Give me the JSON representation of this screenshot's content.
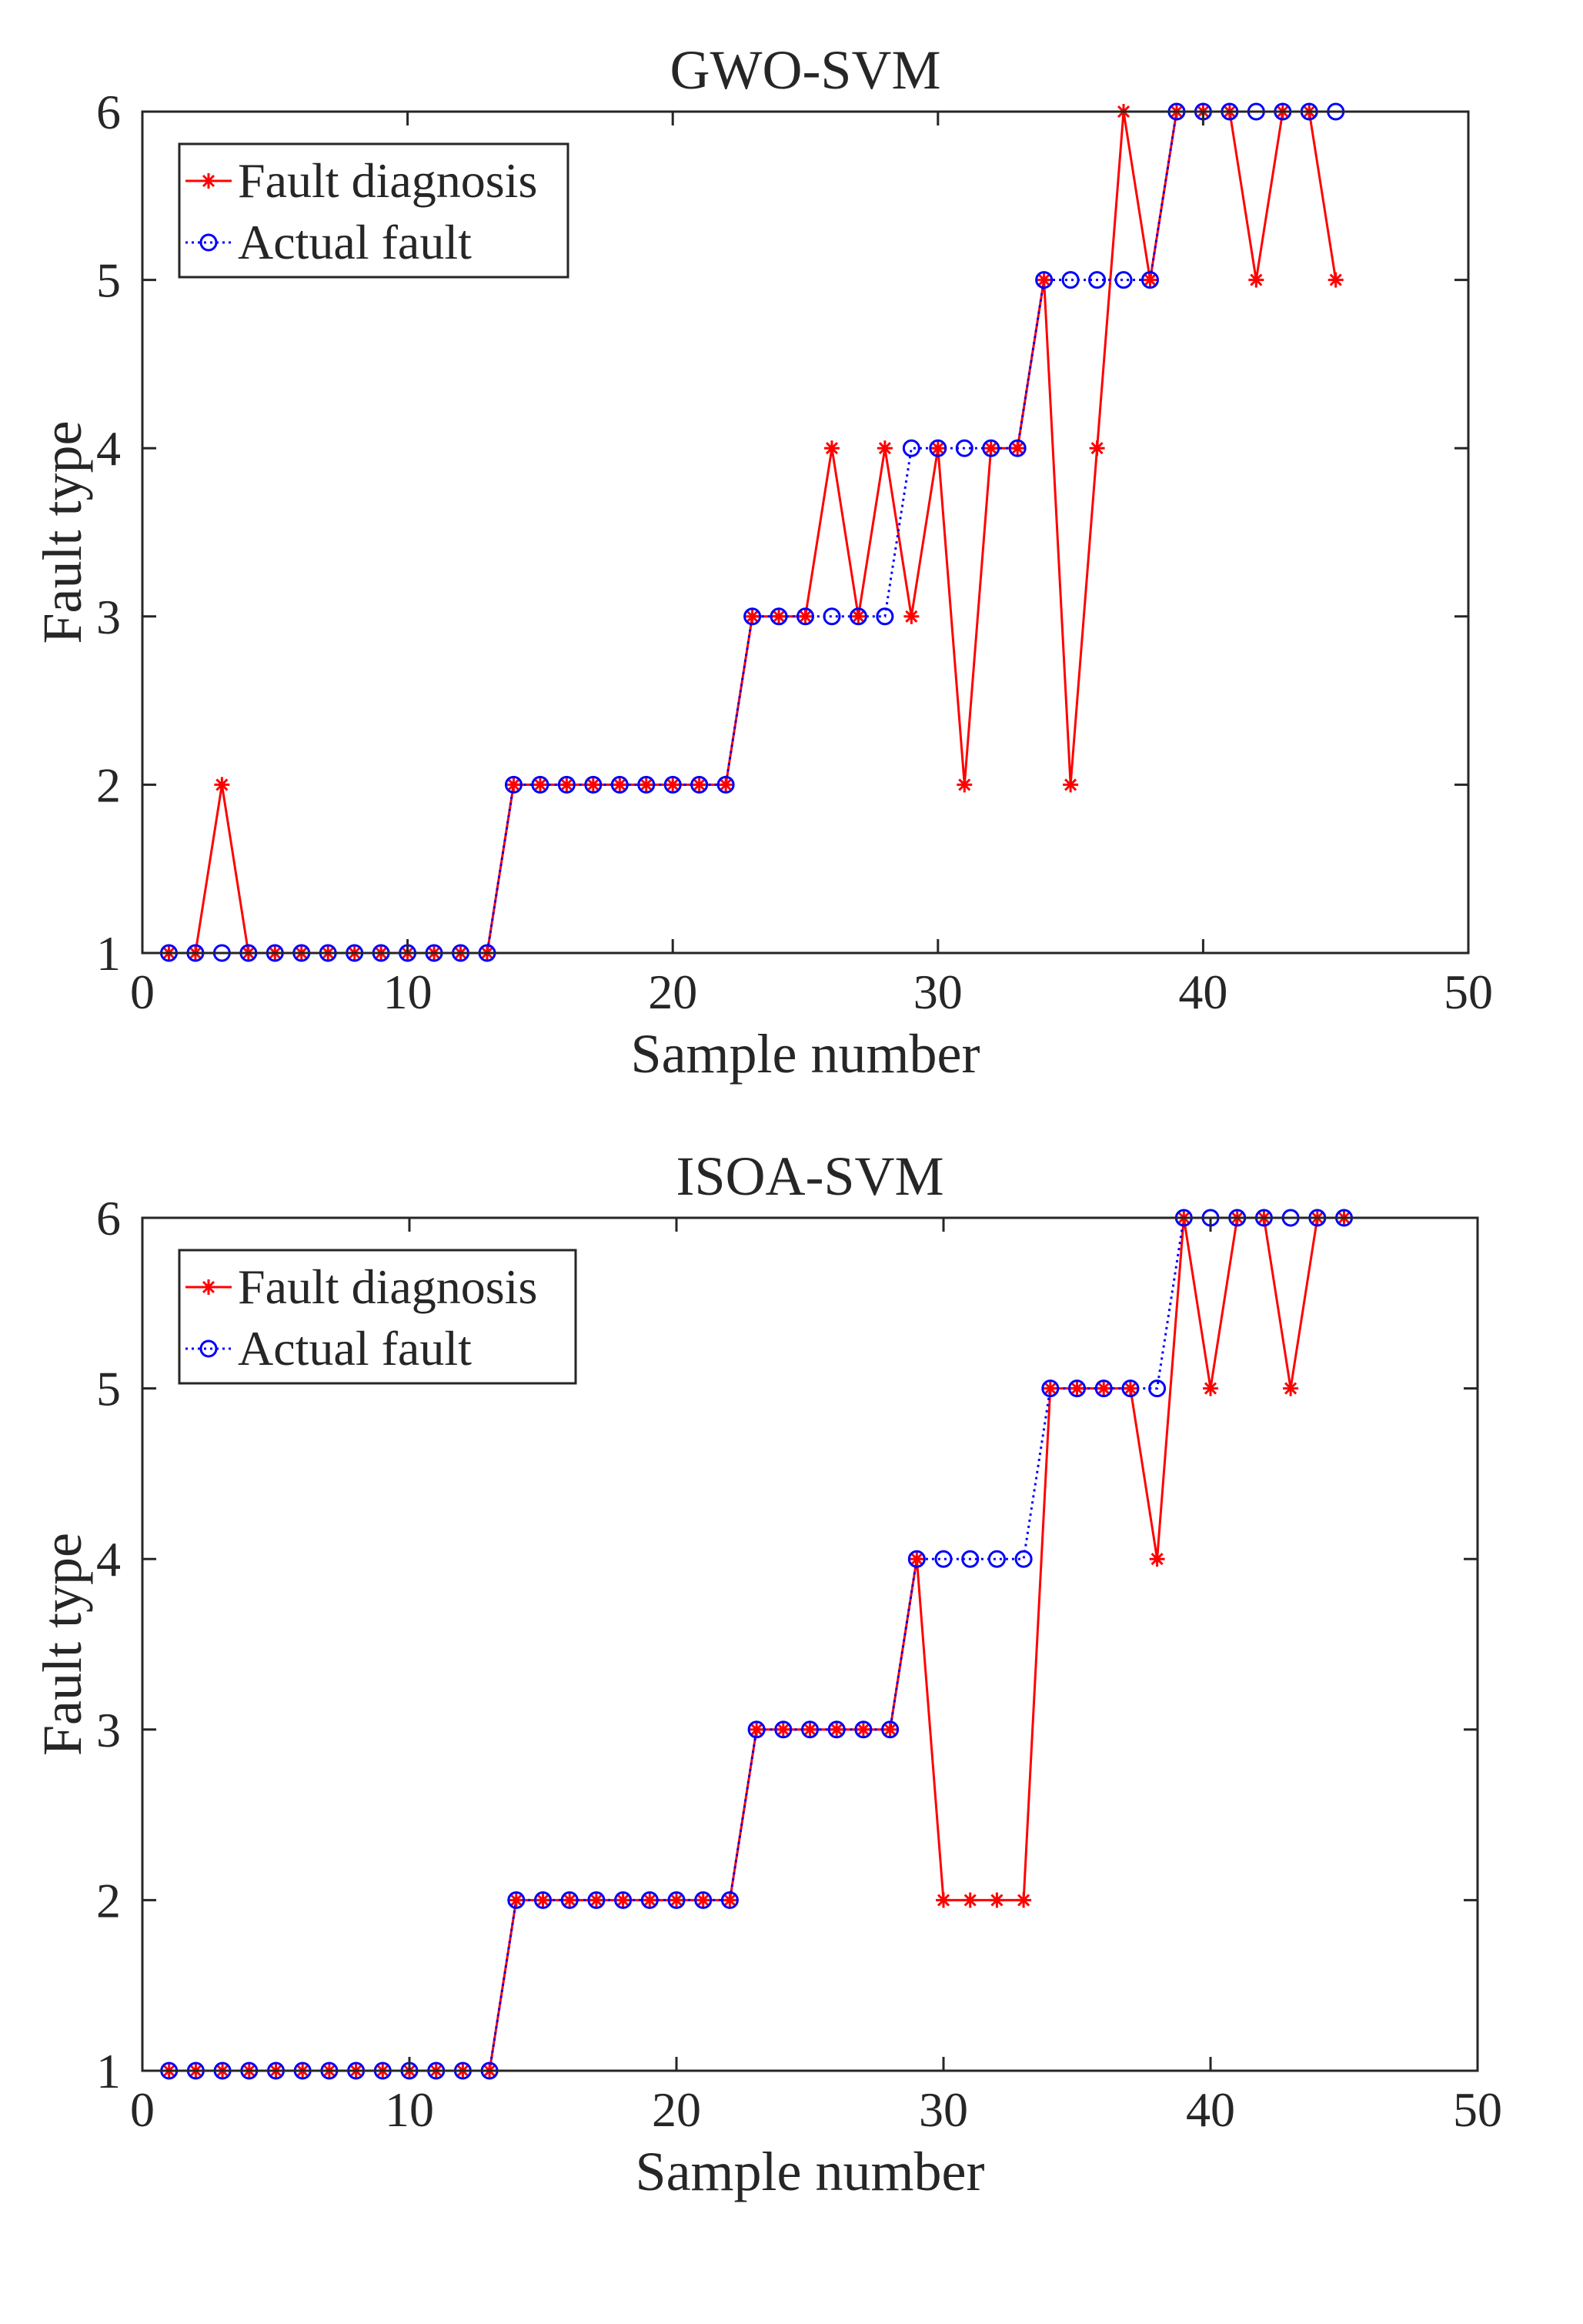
{
  "chart_data": [
    {
      "type": "line",
      "title": "GWO-SVM",
      "xlabel": "Sample number",
      "ylabel": "Fault type",
      "xlim": [
        0,
        50
      ],
      "ylim": [
        1,
        6
      ],
      "xticks": [
        0,
        10,
        20,
        30,
        40,
        50
      ],
      "yticks": [
        1,
        2,
        3,
        4,
        5,
        6
      ],
      "grid": false,
      "legend_position": "top-left",
      "x": [
        1,
        2,
        3,
        4,
        5,
        6,
        7,
        8,
        9,
        10,
        11,
        12,
        13,
        14,
        15,
        16,
        17,
        18,
        19,
        20,
        21,
        22,
        23,
        24,
        25,
        26,
        27,
        28,
        29,
        30,
        31,
        32,
        33,
        34,
        35,
        36,
        37,
        38,
        39,
        40,
        41,
        42,
        43,
        44,
        45
      ],
      "series": [
        {
          "name": "Fault diagnosis",
          "color": "#ff0000",
          "line": "solid",
          "marker": "asterisk",
          "values": [
            1,
            1,
            2,
            1,
            1,
            1,
            1,
            1,
            1,
            1,
            1,
            1,
            1,
            2,
            2,
            2,
            2,
            2,
            2,
            2,
            2,
            2,
            3,
            3,
            3,
            4,
            3,
            4,
            3,
            4,
            2,
            4,
            4,
            5,
            2,
            4,
            6,
            5,
            6,
            6,
            6,
            5,
            6,
            6,
            5
          ]
        },
        {
          "name": "Actual fault",
          "color": "#0000ff",
          "line": "dotted",
          "marker": "circle",
          "values": [
            1,
            1,
            1,
            1,
            1,
            1,
            1,
            1,
            1,
            1,
            1,
            1,
            1,
            2,
            2,
            2,
            2,
            2,
            2,
            2,
            2,
            2,
            3,
            3,
            3,
            3,
            3,
            3,
            4,
            4,
            4,
            4,
            4,
            5,
            5,
            5,
            5,
            5,
            6,
            6,
            6,
            6,
            6,
            6,
            6
          ]
        }
      ]
    },
    {
      "type": "line",
      "title": "ISOA-SVM",
      "xlabel": "Sample number",
      "ylabel": "Fault type",
      "xlim": [
        0,
        50
      ],
      "ylim": [
        1,
        6
      ],
      "xticks": [
        0,
        10,
        20,
        30,
        40,
        50
      ],
      "yticks": [
        1,
        2,
        3,
        4,
        5,
        6
      ],
      "grid": false,
      "legend_position": "top-left",
      "x": [
        1,
        2,
        3,
        4,
        5,
        6,
        7,
        8,
        9,
        10,
        11,
        12,
        13,
        14,
        15,
        16,
        17,
        18,
        19,
        20,
        21,
        22,
        23,
        24,
        25,
        26,
        27,
        28,
        29,
        30,
        31,
        32,
        33,
        34,
        35,
        36,
        37,
        38,
        39,
        40,
        41,
        42,
        43,
        44,
        45
      ],
      "series": [
        {
          "name": "Fault diagnosis",
          "color": "#ff0000",
          "line": "solid",
          "marker": "asterisk",
          "values": [
            1,
            1,
            1,
            1,
            1,
            1,
            1,
            1,
            1,
            1,
            1,
            1,
            1,
            2,
            2,
            2,
            2,
            2,
            2,
            2,
            2,
            2,
            3,
            3,
            3,
            3,
            3,
            3,
            4,
            2,
            2,
            2,
            2,
            5,
            5,
            5,
            5,
            4,
            6,
            5,
            6,
            6,
            5,
            6,
            6
          ]
        },
        {
          "name": "Actual fault",
          "color": "#0000ff",
          "line": "dotted",
          "marker": "circle",
          "values": [
            1,
            1,
            1,
            1,
            1,
            1,
            1,
            1,
            1,
            1,
            1,
            1,
            1,
            2,
            2,
            2,
            2,
            2,
            2,
            2,
            2,
            2,
            3,
            3,
            3,
            3,
            3,
            3,
            4,
            4,
            4,
            4,
            4,
            5,
            5,
            5,
            5,
            5,
            6,
            6,
            6,
            6,
            6,
            6,
            6
          ]
        }
      ]
    }
  ]
}
